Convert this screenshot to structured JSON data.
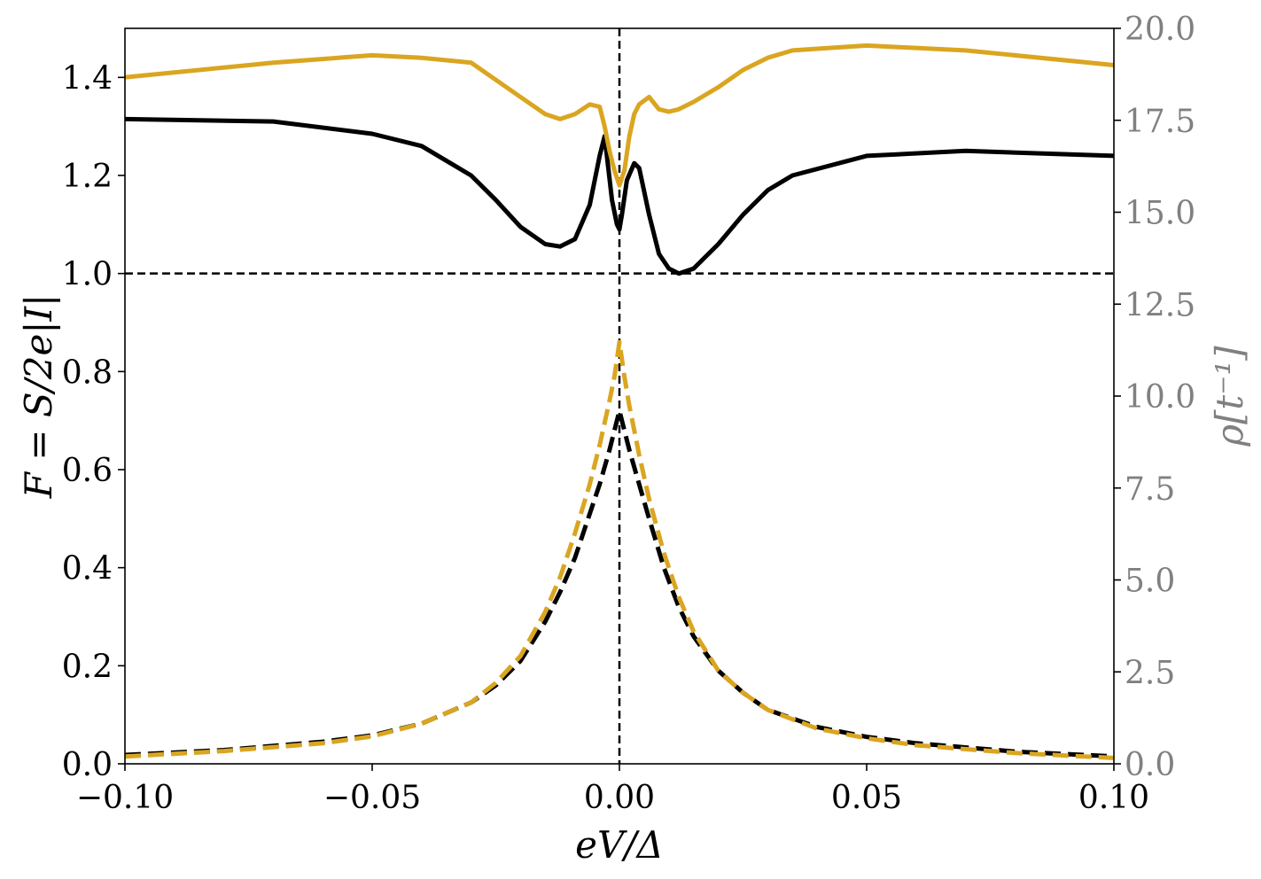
{
  "chart_data": {
    "type": "line",
    "title": "",
    "xlabel": "eV/Δ",
    "ylabel_left": "F = S/2e|I|",
    "ylabel_right": "ρ[t⁻¹]",
    "xlim": [
      -0.1,
      0.1
    ],
    "ylim_left": [
      0.0,
      1.5
    ],
    "ylim_right": [
      0.0,
      20.0
    ],
    "x_ticks": [
      "−0.10",
      "−0.05",
      "0.00",
      "0.05",
      "0.10"
    ],
    "x_tick_values": [
      -0.1,
      -0.05,
      0.0,
      0.05,
      0.1
    ],
    "y_left_ticks": [
      "0.0",
      "0.2",
      "0.4",
      "0.6",
      "0.8",
      "1.0",
      "1.2",
      "1.4"
    ],
    "y_left_tick_values": [
      0.0,
      0.2,
      0.4,
      0.6,
      0.8,
      1.0,
      1.2,
      1.4
    ],
    "y_right_ticks": [
      "0.0",
      "2.5",
      "5.0",
      "7.5",
      "10.0",
      "12.5",
      "15.0",
      "17.5",
      "20.0"
    ],
    "y_right_tick_values": [
      0.0,
      2.5,
      5.0,
      7.5,
      10.0,
      12.5,
      15.0,
      17.5,
      20.0
    ],
    "grid": false,
    "legend": "none",
    "reference_lines": [
      {
        "orientation": "horizontal",
        "axis": "left",
        "value": 1.0,
        "style": "dashed",
        "color": "#000000"
      },
      {
        "orientation": "vertical",
        "value": 0.0,
        "style": "dashed",
        "color": "#000000"
      }
    ],
    "colors": {
      "black": "#000000",
      "gold": "#DAA520",
      "right_axis": "#808080"
    },
    "series": [
      {
        "axis": "left",
        "color": "#000000",
        "style": "solid",
        "x": [
          -0.1,
          -0.07,
          -0.05,
          -0.04,
          -0.03,
          -0.025,
          -0.02,
          -0.015,
          -0.012,
          -0.009,
          -0.006,
          -0.004,
          -0.003,
          -0.0015,
          -0.0005,
          0.0,
          0.0005,
          0.0015,
          0.003,
          0.004,
          0.006,
          0.008,
          0.01,
          0.012,
          0.015,
          0.02,
          0.025,
          0.03,
          0.035,
          0.05,
          0.07,
          0.1
        ],
        "y": [
          1.315,
          1.31,
          1.285,
          1.26,
          1.2,
          1.15,
          1.095,
          1.06,
          1.055,
          1.07,
          1.14,
          1.24,
          1.28,
          1.15,
          1.1,
          1.09,
          1.12,
          1.19,
          1.225,
          1.215,
          1.12,
          1.04,
          1.01,
          1.0,
          1.01,
          1.06,
          1.12,
          1.17,
          1.2,
          1.24,
          1.25,
          1.24
        ]
      },
      {
        "axis": "left",
        "color": "#DAA520",
        "style": "solid",
        "x": [
          -0.1,
          -0.07,
          -0.05,
          -0.04,
          -0.03,
          -0.02,
          -0.015,
          -0.012,
          -0.009,
          -0.006,
          -0.004,
          -0.003,
          -0.002,
          -0.001,
          0.0,
          0.001,
          0.002,
          0.003,
          0.004,
          0.006,
          0.008,
          0.01,
          0.012,
          0.015,
          0.02,
          0.025,
          0.03,
          0.035,
          0.05,
          0.07,
          0.1
        ],
        "y": [
          1.4,
          1.43,
          1.445,
          1.44,
          1.43,
          1.36,
          1.325,
          1.315,
          1.325,
          1.345,
          1.34,
          1.3,
          1.25,
          1.21,
          1.18,
          1.21,
          1.28,
          1.325,
          1.345,
          1.36,
          1.335,
          1.33,
          1.335,
          1.35,
          1.38,
          1.415,
          1.44,
          1.455,
          1.465,
          1.455,
          1.425
        ]
      },
      {
        "axis": "left",
        "color": "#000000",
        "style": "dashed",
        "x": [
          -0.1,
          -0.08,
          -0.06,
          -0.05,
          -0.04,
          -0.03,
          -0.025,
          -0.02,
          -0.015,
          -0.012,
          -0.009,
          -0.006,
          -0.004,
          -0.002,
          -0.001,
          0.0,
          0.001,
          0.002,
          0.004,
          0.006,
          0.009,
          0.012,
          0.015,
          0.02,
          0.025,
          0.03,
          0.04,
          0.05,
          0.06,
          0.08,
          0.1
        ],
        "y": [
          0.018,
          0.028,
          0.045,
          0.058,
          0.082,
          0.125,
          0.16,
          0.21,
          0.29,
          0.35,
          0.42,
          0.51,
          0.57,
          0.64,
          0.68,
          0.72,
          0.68,
          0.64,
          0.57,
          0.5,
          0.4,
          0.32,
          0.26,
          0.19,
          0.145,
          0.11,
          0.075,
          0.055,
          0.042,
          0.025,
          0.015
        ]
      },
      {
        "axis": "left",
        "color": "#DAA520",
        "style": "dashed",
        "x": [
          -0.1,
          -0.08,
          -0.06,
          -0.05,
          -0.04,
          -0.03,
          -0.025,
          -0.02,
          -0.015,
          -0.012,
          -0.009,
          -0.006,
          -0.004,
          -0.002,
          -0.001,
          0.0,
          0.001,
          0.002,
          0.004,
          0.006,
          0.009,
          0.012,
          0.015,
          0.02,
          0.025,
          0.03,
          0.04,
          0.05,
          0.06,
          0.08,
          0.1
        ],
        "y": [
          0.015,
          0.026,
          0.042,
          0.056,
          0.082,
          0.125,
          0.165,
          0.22,
          0.31,
          0.38,
          0.47,
          0.57,
          0.65,
          0.74,
          0.79,
          0.86,
          0.79,
          0.73,
          0.63,
          0.54,
          0.43,
          0.34,
          0.27,
          0.19,
          0.145,
          0.11,
          0.072,
          0.052,
          0.038,
          0.022,
          0.012
        ]
      }
    ]
  }
}
